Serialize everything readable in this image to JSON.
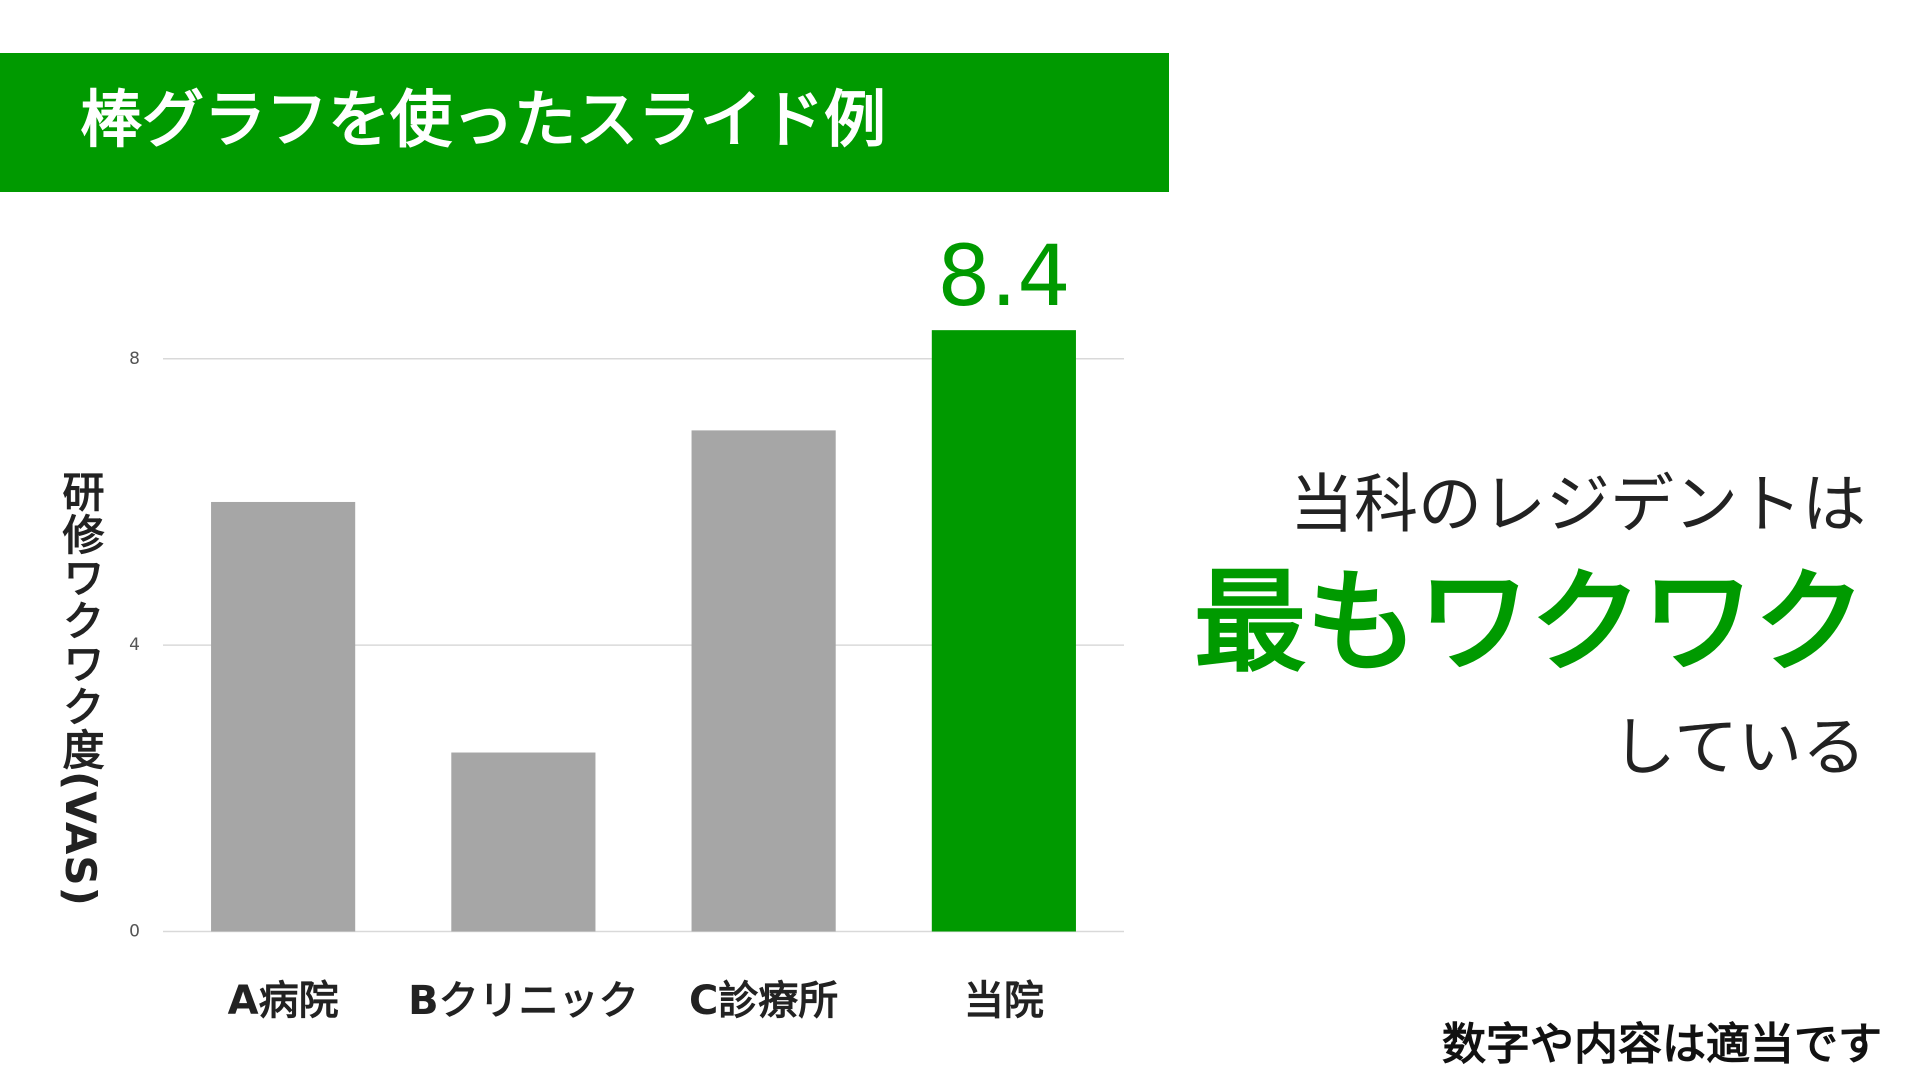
{
  "slide_title": "棒グラフを使ったスライド例",
  "chart_data": {
    "type": "bar",
    "y_label": "研修ワクワク度(VAS)",
    "categories": [
      "A病院",
      "Bクリニック",
      "C診療所",
      "当院"
    ],
    "values": [
      6,
      2.5,
      7,
      8.4
    ],
    "value_labels": [
      null,
      null,
      null,
      "8.4"
    ],
    "colors": [
      "#a6a6a6",
      "#a6a6a6",
      "#a6a6a6",
      "#009a00"
    ],
    "ylim": [
      0,
      8.5
    ],
    "yticks": [
      0,
      4,
      8
    ],
    "grid": true
  },
  "message": {
    "line1": "当科のレジデントは",
    "line2": "最もワクワク",
    "line3": "している"
  },
  "note": "数字や内容は適当です"
}
